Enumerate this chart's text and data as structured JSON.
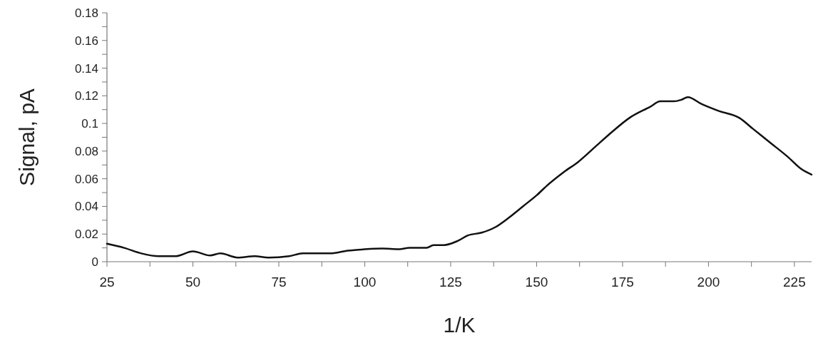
{
  "chart_data": {
    "type": "line",
    "xlabel": "1/K",
    "ylabel": "Signal, pA",
    "xlim": [
      25,
      230
    ],
    "xticks": [
      25,
      {
        "value": 37.5,
        "label": null
      },
      50,
      {
        "value": 62.5,
        "label": null
      },
      75,
      {
        "value": 87.5,
        "label": null
      },
      100,
      {
        "value": 112.5,
        "label": null
      },
      125,
      {
        "value": 137.5,
        "label": null
      },
      150,
      {
        "value": 162.5,
        "label": null
      },
      175,
      {
        "value": 187.5,
        "label": null
      },
      200,
      {
        "value": 212.5,
        "label": null
      },
      225
    ],
    "ylim": [
      0,
      0.18
    ],
    "yticks": [
      0,
      {
        "value": 0.01,
        "label": null
      },
      0.02,
      {
        "value": 0.03,
        "label": null
      },
      0.04,
      {
        "value": 0.05,
        "label": null
      },
      0.06,
      {
        "value": 0.07,
        "label": null
      },
      0.08,
      {
        "value": 0.09,
        "label": null
      },
      0.1,
      {
        "value": 0.11,
        "label": null
      },
      0.12,
      {
        "value": 0.13,
        "label": null
      },
      0.14,
      {
        "value": 0.15,
        "label": null
      },
      0.16,
      {
        "value": 0.17,
        "label": null
      },
      0.18
    ],
    "grid": false,
    "marker": "none",
    "line_style": "solid",
    "series": [
      {
        "color": "#111111",
        "x": [
          25,
          30,
          35,
          40,
          45,
          50,
          55,
          58,
          63,
          68,
          72,
          78,
          82,
          90,
          95,
          100,
          105,
          110,
          113,
          118,
          120,
          123,
          127,
          130,
          134,
          138,
          142,
          146,
          150,
          153,
          158,
          162,
          167,
          172,
          177,
          183,
          186,
          190,
          192,
          194,
          198,
          203,
          209,
          213,
          218,
          223,
          227,
          230
        ],
        "values": [
          0.013,
          0.01,
          0.006,
          0.004,
          0.004,
          0.0075,
          0.0045,
          0.006,
          0.003,
          0.004,
          0.003,
          0.004,
          0.006,
          0.006,
          0.008,
          0.009,
          0.0095,
          0.009,
          0.01,
          0.01,
          0.012,
          0.012,
          0.015,
          0.019,
          0.021,
          0.025,
          0.032,
          0.04,
          0.048,
          0.055,
          0.065,
          0.072,
          0.083,
          0.094,
          0.104,
          0.112,
          0.116,
          0.116,
          0.117,
          0.119,
          0.114,
          0.109,
          0.104,
          0.096,
          0.086,
          0.076,
          0.067,
          0.063
        ]
      }
    ]
  }
}
